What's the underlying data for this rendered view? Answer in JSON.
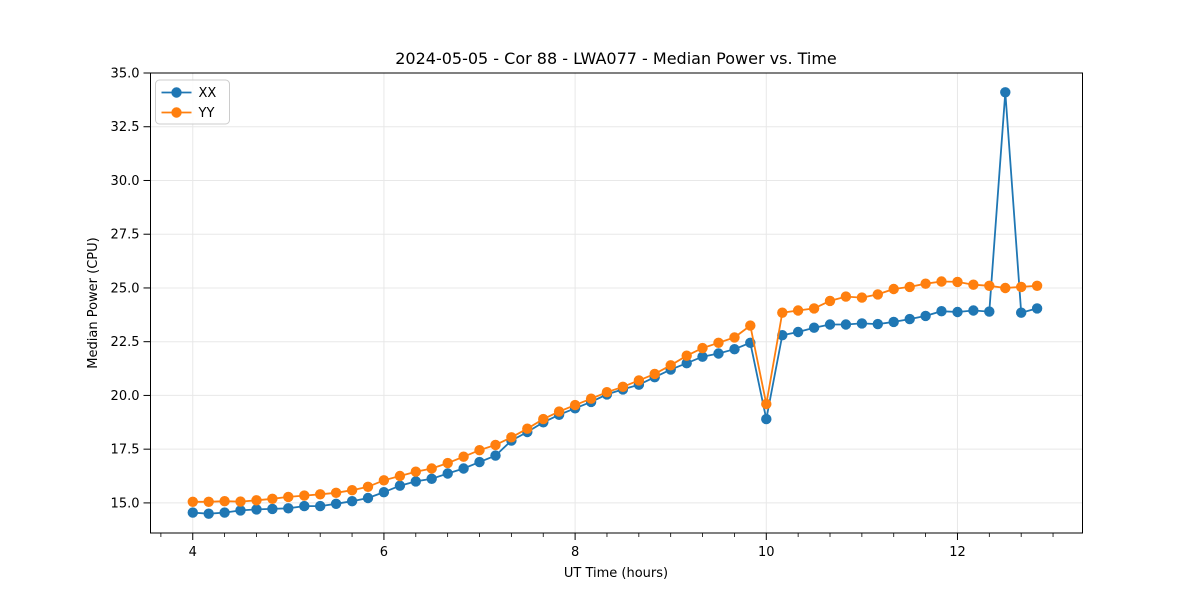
{
  "figure": {
    "title": "2024-05-05 - Cor 88 - LWA077 - Median Power vs. Time",
    "background": "#ffffff"
  },
  "chart_data": {
    "type": "line",
    "title": "2024-05-05 - Cor 88 - LWA077 - Median Power vs. Time",
    "xlabel": "UT Time (hours)",
    "ylabel": "Median Power (CPU)",
    "xlim": [
      3.558,
      13.308
    ],
    "ylim": [
      13.6,
      35.0
    ],
    "x_major_ticks": [
      4,
      6,
      8,
      10,
      12
    ],
    "x_minor_tick_step": 0.33333,
    "y_major_ticks": [
      15.0,
      17.5,
      20.0,
      22.5,
      25.0,
      27.5,
      30.0,
      32.5,
      35.0
    ],
    "y_tick_label_format": "one_decimal",
    "grid": true,
    "grid_color": "#e8e8e8",
    "spine_color": "#000000",
    "legend": {
      "position": "upper-left",
      "entries": [
        "XX",
        "YY"
      ]
    },
    "x": [
      4.0,
      4.167,
      4.333,
      4.5,
      4.667,
      4.833,
      5.0,
      5.167,
      5.333,
      5.5,
      5.667,
      5.833,
      6.0,
      6.167,
      6.333,
      6.5,
      6.667,
      6.833,
      7.0,
      7.167,
      7.333,
      7.5,
      7.667,
      7.833,
      8.0,
      8.167,
      8.333,
      8.5,
      8.667,
      8.833,
      9.0,
      9.167,
      9.333,
      9.5,
      9.667,
      9.833,
      10.0,
      10.167,
      10.333,
      10.5,
      10.667,
      10.833,
      11.0,
      11.167,
      11.333,
      11.5,
      11.667,
      11.833,
      12.0,
      12.167,
      12.333,
      12.5,
      12.667,
      12.833
    ],
    "series": [
      {
        "name": "XX",
        "color": "#1f77b4",
        "values": [
          14.55,
          14.5,
          14.55,
          14.65,
          14.7,
          14.72,
          14.75,
          14.85,
          14.85,
          14.96,
          15.08,
          15.23,
          15.5,
          15.8,
          16.0,
          16.12,
          16.37,
          16.6,
          16.9,
          17.2,
          17.9,
          18.3,
          18.75,
          19.1,
          19.4,
          19.7,
          20.05,
          20.28,
          20.5,
          20.85,
          21.2,
          21.5,
          21.8,
          21.95,
          22.15,
          22.45,
          18.9,
          22.8,
          22.95,
          23.15,
          23.3,
          23.3,
          23.35,
          23.32,
          23.42,
          23.55,
          23.7,
          23.92,
          23.88,
          23.95,
          23.9,
          34.1,
          23.85,
          24.05
        ]
      },
      {
        "name": "YY",
        "color": "#ff7f0e",
        "values": [
          15.05,
          15.05,
          15.08,
          15.06,
          15.12,
          15.19,
          15.28,
          15.34,
          15.4,
          15.47,
          15.59,
          15.75,
          16.05,
          16.25,
          16.45,
          16.6,
          16.85,
          17.15,
          17.45,
          17.7,
          18.05,
          18.45,
          18.9,
          19.25,
          19.55,
          19.85,
          20.15,
          20.4,
          20.7,
          21.0,
          21.4,
          21.85,
          22.2,
          22.45,
          22.7,
          23.25,
          19.6,
          23.85,
          23.95,
          24.05,
          24.4,
          24.6,
          24.55,
          24.7,
          24.95,
          25.05,
          25.2,
          25.3,
          25.28,
          25.15,
          25.1,
          25.0,
          25.05,
          25.1
        ]
      }
    ],
    "annotations": {
      "dip_at_x": 10.0,
      "spike": {
        "series": "XX",
        "x": 12.5,
        "y": 34.1
      }
    }
  }
}
